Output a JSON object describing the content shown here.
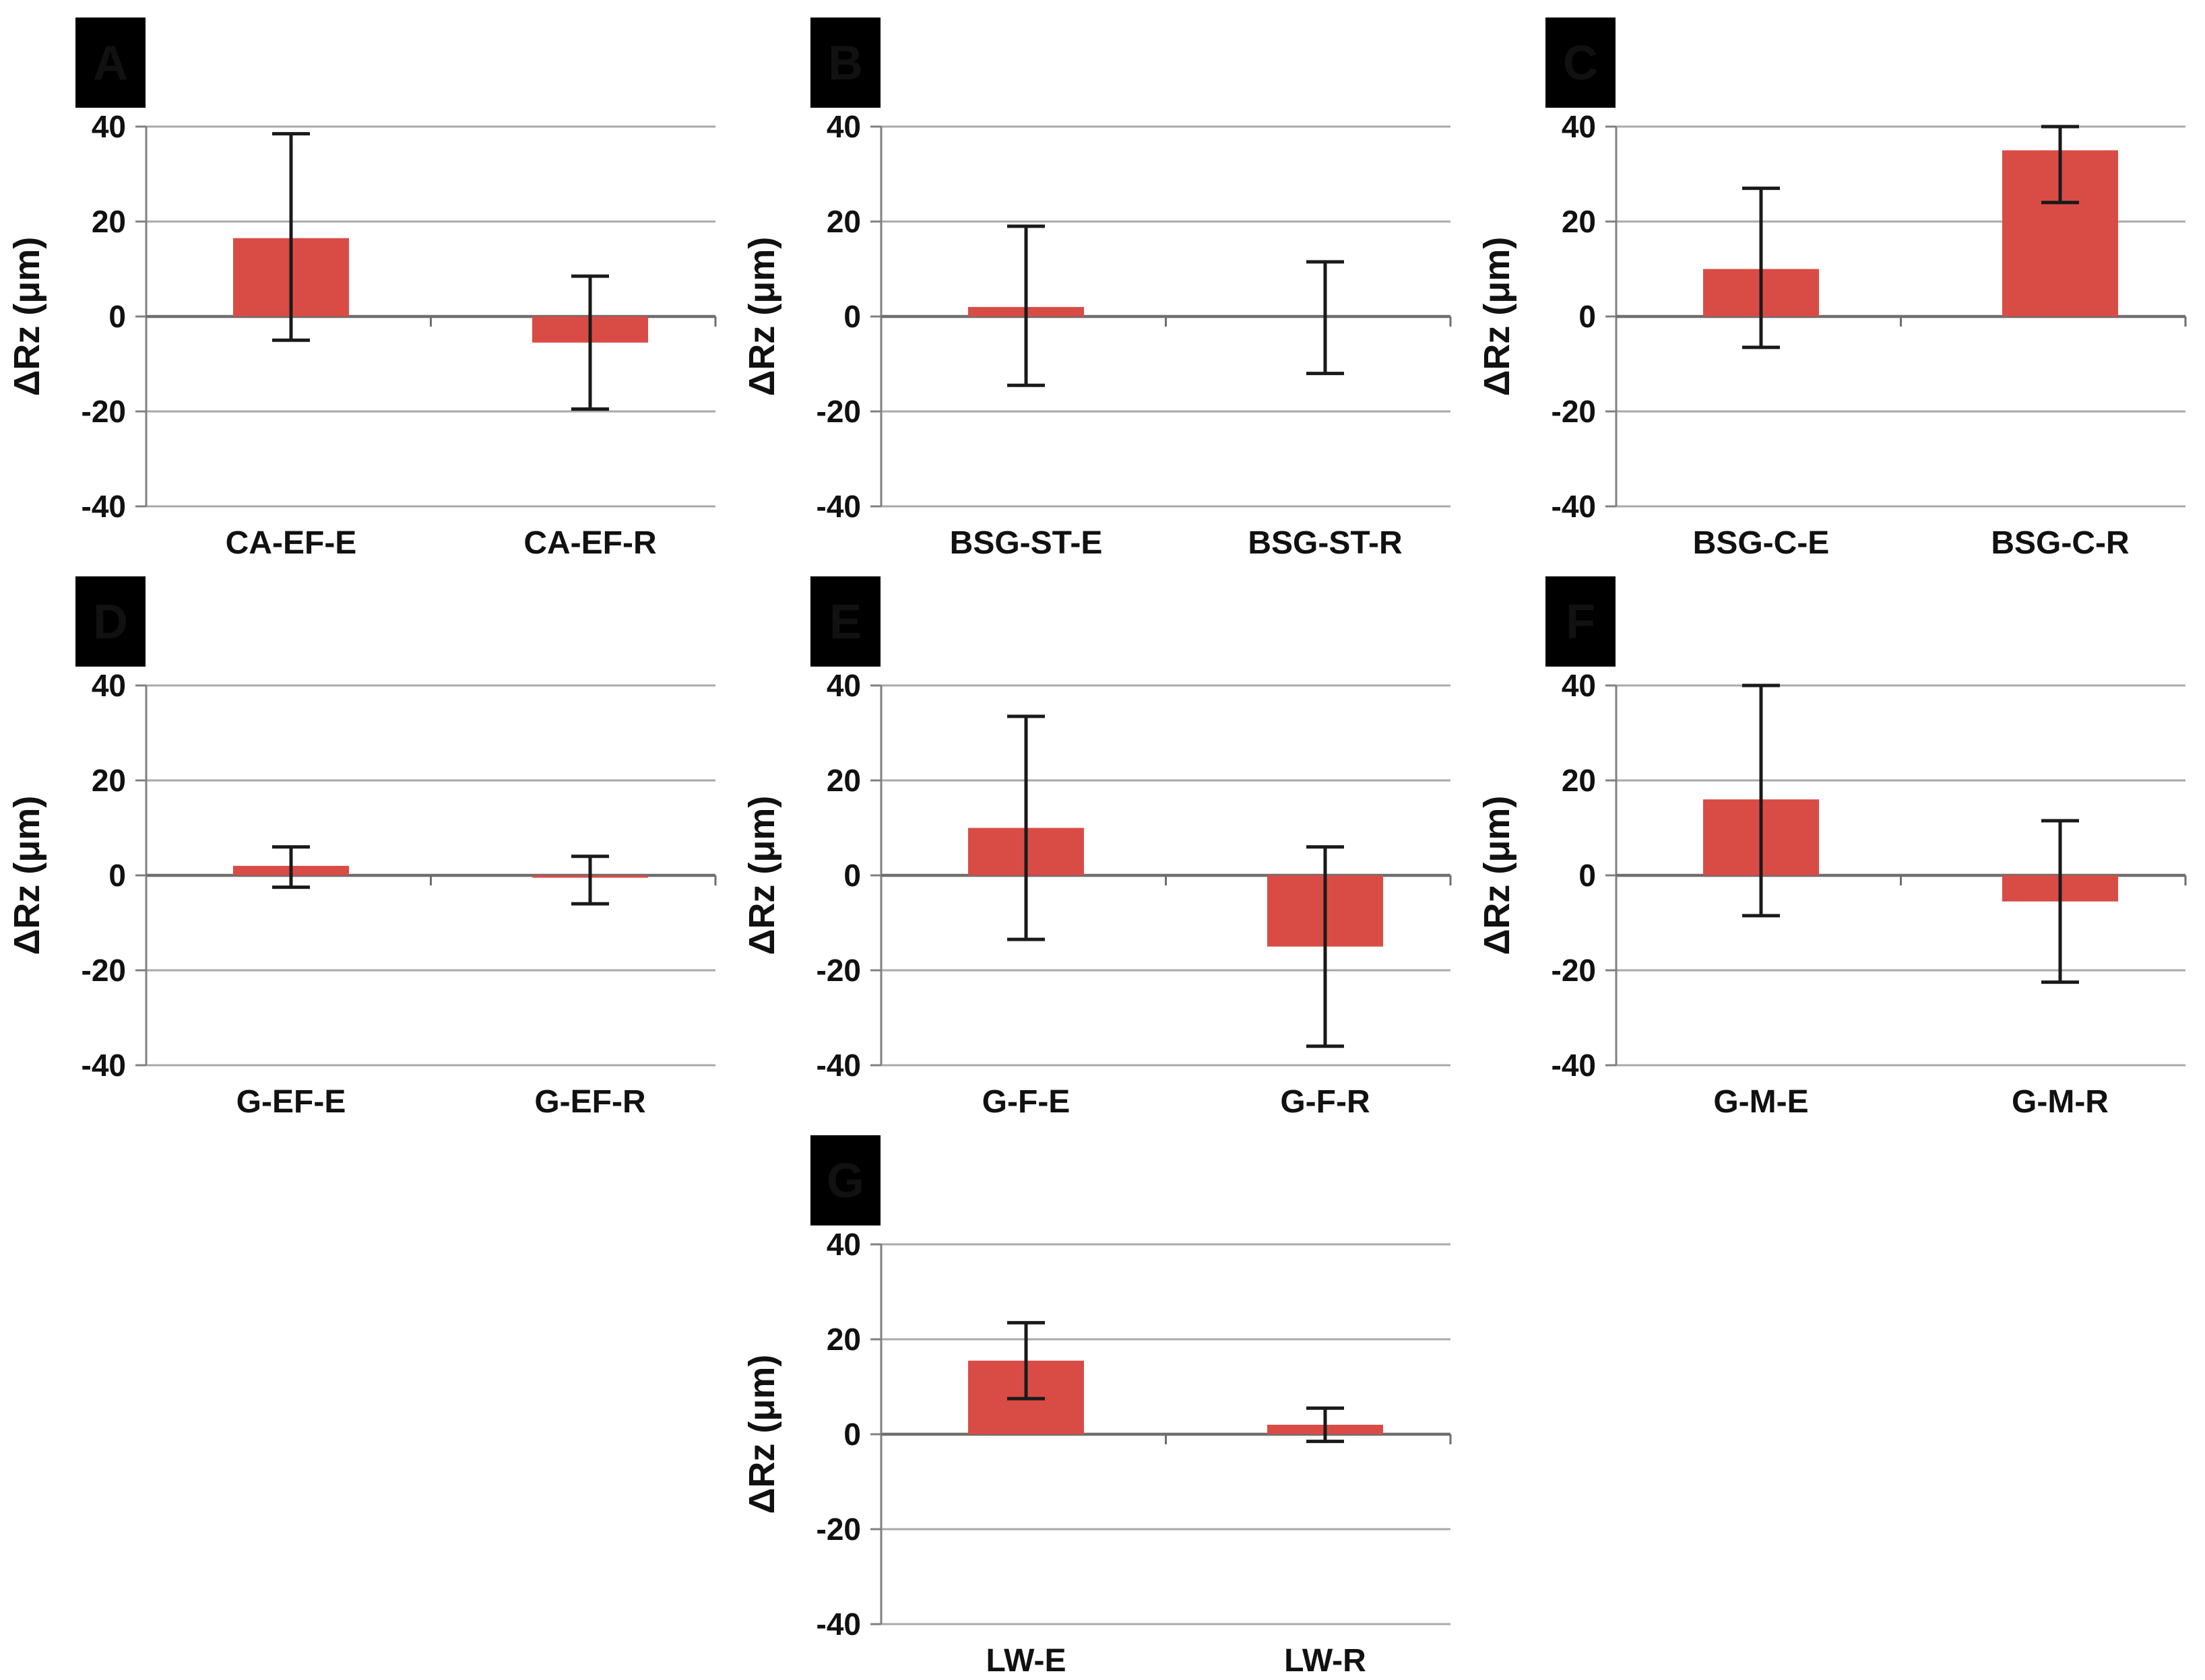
{
  "figure": {
    "ylabel": "ΔRz (μm)",
    "bar_color": "#d94c45",
    "grid_color": "#a9a9a9",
    "axis_color": "#808080",
    "zero_axis_color": "#6e6e6e",
    "error_color": "#1a1a1a",
    "panel_label_bg": "#000000",
    "panel_label_fg": "#ffffff"
  },
  "chart_data": [
    {
      "type": "bar",
      "title": "A",
      "categories": [
        "CA-EF-E",
        "CA-EF-R"
      ],
      "values": [
        16.5,
        -5.5
      ],
      "error_low": [
        -5,
        -19.5
      ],
      "error_high": [
        38.5,
        8.5
      ],
      "ylabel": "ΔRz (μm)",
      "ylim": [
        -40,
        40
      ],
      "yticks": [
        40,
        20,
        0,
        -20,
        -40
      ],
      "grid": "horizontal",
      "legend": "none"
    },
    {
      "type": "bar",
      "title": "B",
      "categories": [
        "BSG-ST-E",
        "BSG-ST-R"
      ],
      "values": [
        2,
        0
      ],
      "error_low": [
        -14.5,
        -12
      ],
      "error_high": [
        19,
        11.5
      ],
      "ylabel": "ΔRz (μm)",
      "ylim": [
        -40,
        40
      ],
      "yticks": [
        40,
        20,
        0,
        -20,
        -40
      ],
      "grid": "horizontal",
      "legend": "none"
    },
    {
      "type": "bar",
      "title": "C",
      "categories": [
        "BSG-C-E",
        "BSG-C-R"
      ],
      "values": [
        10,
        35
      ],
      "error_low": [
        -6.5,
        24
      ],
      "error_high": [
        27,
        40
      ],
      "ylabel": "ΔRz (μm)",
      "ylim": [
        -40,
        40
      ],
      "yticks": [
        40,
        20,
        0,
        -20,
        -40
      ],
      "grid": "horizontal",
      "legend": "none"
    },
    {
      "type": "bar",
      "title": "D",
      "categories": [
        "G-EF-E",
        "G-EF-R"
      ],
      "values": [
        2,
        -0.5
      ],
      "error_low": [
        -2.5,
        -6
      ],
      "error_high": [
        6,
        4
      ],
      "ylabel": "ΔRz (μm)",
      "ylim": [
        -40,
        40
      ],
      "yticks": [
        40,
        20,
        0,
        -20,
        -40
      ],
      "grid": "horizontal",
      "legend": "none"
    },
    {
      "type": "bar",
      "title": "E",
      "categories": [
        "G-F-E",
        "G-F-R"
      ],
      "values": [
        10,
        -15
      ],
      "error_low": [
        -13.5,
        -36
      ],
      "error_high": [
        33.5,
        6
      ],
      "ylabel": "ΔRz (μm)",
      "ylim": [
        -40,
        40
      ],
      "yticks": [
        40,
        20,
        0,
        -20,
        -40
      ],
      "grid": "horizontal",
      "legend": "none"
    },
    {
      "type": "bar",
      "title": "F",
      "categories": [
        "G-M-E",
        "G-M-R"
      ],
      "values": [
        16,
        -5.5
      ],
      "error_low": [
        -8.5,
        -22.5
      ],
      "error_high": [
        40,
        11.5
      ],
      "ylabel": "ΔRz (μm)",
      "ylim": [
        -40,
        40
      ],
      "yticks": [
        40,
        20,
        0,
        -20,
        -40
      ],
      "grid": "horizontal",
      "legend": "none"
    },
    {
      "type": "bar",
      "title": "G",
      "categories": [
        "LW-E",
        "LW-R"
      ],
      "values": [
        15.5,
        2
      ],
      "error_low": [
        7.5,
        -1.5
      ],
      "error_high": [
        23.5,
        5.5
      ],
      "ylabel": "ΔRz (μm)",
      "ylim": [
        -40,
        40
      ],
      "yticks": [
        40,
        20,
        0,
        -20,
        -40
      ],
      "grid": "horizontal",
      "legend": "none"
    }
  ]
}
